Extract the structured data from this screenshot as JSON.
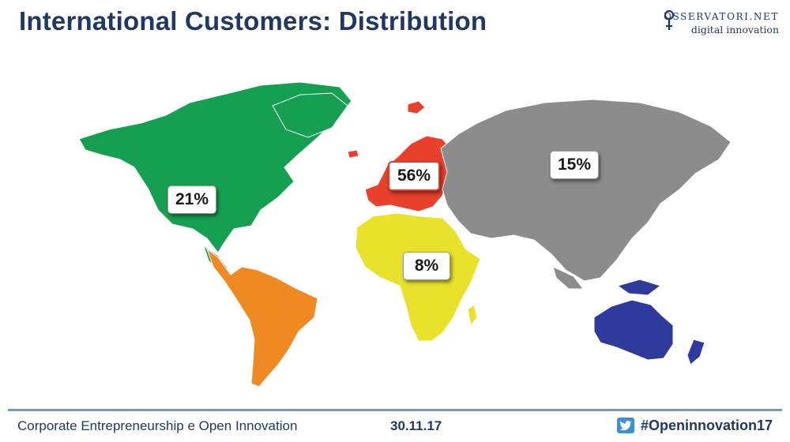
{
  "slide": {
    "title": "International Customers: Distribution"
  },
  "logo": {
    "line1": "OSSERVATORI.NET",
    "line2": "digital innovation",
    "icon": "osservatori-logo-icon"
  },
  "regions": {
    "north_america": {
      "label": "21%",
      "color": "#14a050"
    },
    "europe": {
      "label": "56%",
      "color": "#e8402a"
    },
    "asia": {
      "label": "15%",
      "color": "#8c8c8c"
    },
    "africa": {
      "label": "8%",
      "color": "#e8e22a"
    },
    "south_america": {
      "label": "",
      "color": "#ef8a22"
    },
    "oceania": {
      "label": "",
      "color": "#2e3a9c"
    }
  },
  "footer": {
    "left": "Corporate Entrepreneurship e Open Innovation",
    "date": "30.11.17",
    "hashtag": "#Openinnovation17",
    "icon": "twitter-icon"
  }
}
